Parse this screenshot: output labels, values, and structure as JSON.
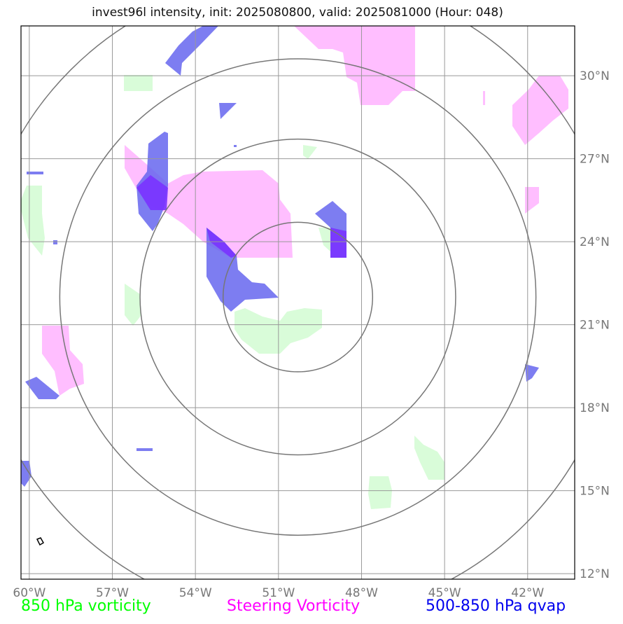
{
  "title": "invest96l intensity, init: 2025080800, valid: 2025081000 (Hour: 048)",
  "map": {
    "lon_range": [
      -60.3,
      -40.3
    ],
    "lat_range": [
      11.8,
      31.8
    ],
    "lon_ticks": [
      {
        "value": -60,
        "label": "60°W"
      },
      {
        "value": -57,
        "label": "57°W"
      },
      {
        "value": -54,
        "label": "54°W"
      },
      {
        "value": -51,
        "label": "51°W"
      },
      {
        "value": -48,
        "label": "48°W"
      },
      {
        "value": -45,
        "label": "45°W"
      },
      {
        "value": -42,
        "label": "42°W"
      }
    ],
    "lat_ticks": [
      {
        "value": 30,
        "label": "30°N"
      },
      {
        "value": 27,
        "label": "27°N"
      },
      {
        "value": 24,
        "label": "24°N"
      },
      {
        "value": 21,
        "label": "21°N"
      },
      {
        "value": 18,
        "label": "18°N"
      },
      {
        "value": 15,
        "label": "15°N"
      },
      {
        "value": 12,
        "label": "12°N"
      }
    ],
    "storm_center": {
      "lon": -50.3,
      "lat": 22.0
    },
    "range_rings_deg": [
      2.7,
      5.7,
      8.6,
      11.6
    ],
    "colors": {
      "vorticity_850": "#d9fcd9",
      "steering_vorticity": "#ffb3ff",
      "qvap": "#6666ee",
      "grid": "#999999",
      "rings": "#777777"
    }
  },
  "legend": {
    "vorticity_850": {
      "label": "850 hPa vorticity",
      "color": "#00ff00"
    },
    "steering": {
      "label": "Steering Vorticity",
      "color": "#ff00ff"
    },
    "qvap": {
      "label": "500-850 hPa qvap",
      "color": "#0000ee"
    }
  }
}
